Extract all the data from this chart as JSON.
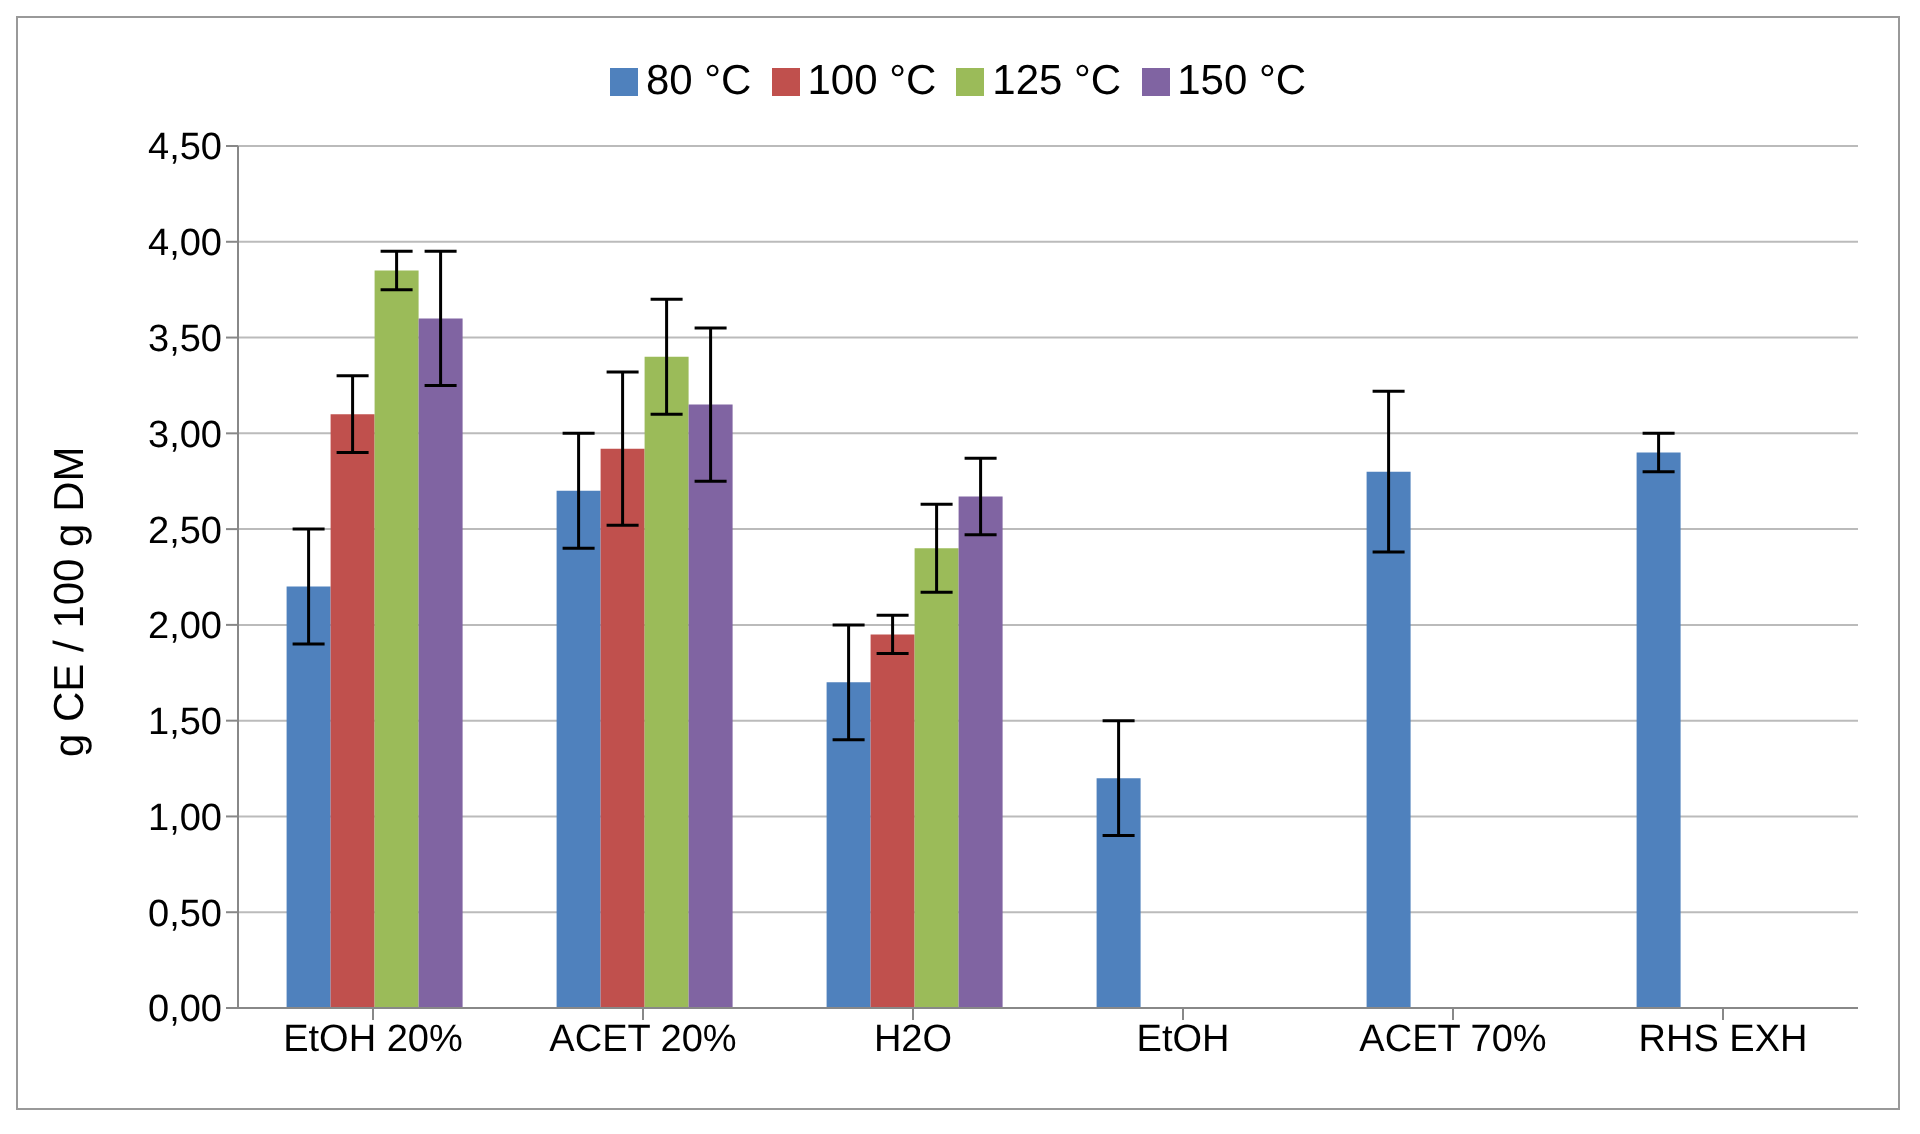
{
  "chart_data": {
    "type": "bar",
    "ylabel": "g CE / 100 g DM",
    "categories": [
      "EtOH 20%",
      "ACET 20%",
      "H2O",
      "EtOH",
      "ACET 70%",
      "RHS EXH"
    ],
    "series": [
      {
        "name": "80 °C",
        "color": "#4f81bd",
        "values": [
          2.2,
          2.7,
          1.7,
          1.2,
          2.8,
          2.9
        ],
        "errors": [
          0.3,
          0.3,
          0.3,
          0.3,
          0.42,
          0.1
        ]
      },
      {
        "name": "100 °C",
        "color": "#c0504d",
        "values": [
          3.1,
          2.92,
          1.95,
          null,
          null,
          null
        ],
        "errors": [
          0.2,
          0.4,
          0.1,
          null,
          null,
          null
        ]
      },
      {
        "name": "125 °C",
        "color": "#9bbb59",
        "values": [
          3.85,
          3.4,
          2.4,
          null,
          null,
          null
        ],
        "errors": [
          0.1,
          0.3,
          0.23,
          null,
          null,
          null
        ]
      },
      {
        "name": "150 °C",
        "color": "#8064a2",
        "values": [
          3.6,
          3.15,
          2.67,
          null,
          null,
          null
        ],
        "errors": [
          0.35,
          0.4,
          0.2,
          null,
          null,
          null
        ]
      }
    ],
    "ylim": [
      0,
      4.5
    ],
    "yticks": [
      {
        "value": 0,
        "label": "0,00"
      },
      {
        "value": 0.5,
        "label": "0,50"
      },
      {
        "value": 1,
        "label": "1,00"
      },
      {
        "value": 1.5,
        "label": "1,50"
      },
      {
        "value": 2,
        "label": "2,00"
      },
      {
        "value": 2.5,
        "label": "2,50"
      },
      {
        "value": 3,
        "label": "3,00"
      },
      {
        "value": 3.5,
        "label": "3,50"
      },
      {
        "value": 4,
        "label": "4,00"
      },
      {
        "value": 4.5,
        "label": "4,50"
      }
    ],
    "grid": "y",
    "legend": "top"
  }
}
